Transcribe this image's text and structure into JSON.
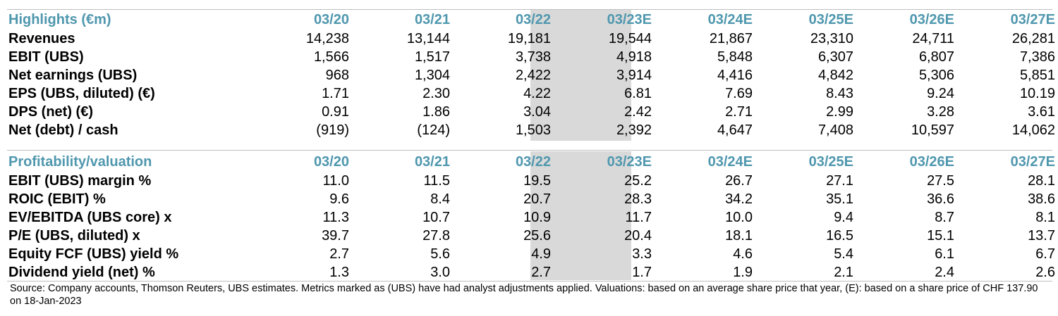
{
  "highlights": {
    "title": "Highlights (€m)",
    "columns": [
      "03/20",
      "03/21",
      "03/22",
      "03/23E",
      "03/24E",
      "03/25E",
      "03/26E",
      "03/27E"
    ],
    "rows": [
      {
        "label": "Revenues",
        "values": [
          "14,238",
          "13,144",
          "19,181",
          "19,544",
          "21,867",
          "23,310",
          "24,711",
          "26,281"
        ]
      },
      {
        "label": "EBIT (UBS)",
        "values": [
          "1,566",
          "1,517",
          "3,738",
          "4,918",
          "5,848",
          "6,307",
          "6,807",
          "7,386"
        ]
      },
      {
        "label": "Net earnings (UBS)",
        "values": [
          "968",
          "1,304",
          "2,422",
          "3,914",
          "4,416",
          "4,842",
          "5,306",
          "5,851"
        ]
      },
      {
        "label": "EPS (UBS, diluted) (€)",
        "values": [
          "1.71",
          "2.30",
          "4.22",
          "6.81",
          "7.69",
          "8.43",
          "9.24",
          "10.19"
        ]
      },
      {
        "label": "DPS (net) (€)",
        "values": [
          "0.91",
          "1.86",
          "3.04",
          "2.42",
          "2.71",
          "2.99",
          "3.28",
          "3.61"
        ]
      },
      {
        "label": "Net (debt) / cash",
        "values": [
          "(919)",
          "(124)",
          "1,503",
          "2,392",
          "4,647",
          "7,408",
          "10,597",
          "14,062"
        ]
      }
    ]
  },
  "profitability": {
    "title": "Profitability/valuation",
    "columns": [
      "03/20",
      "03/21",
      "03/22",
      "03/23E",
      "03/24E",
      "03/25E",
      "03/26E",
      "03/27E"
    ],
    "rows": [
      {
        "label": "EBIT (UBS) margin %",
        "values": [
          "11.0",
          "11.5",
          "19.5",
          "25.2",
          "26.7",
          "27.1",
          "27.5",
          "28.1"
        ]
      },
      {
        "label": "ROIC (EBIT) %",
        "values": [
          "9.6",
          "8.4",
          "20.7",
          "28.3",
          "34.2",
          "35.1",
          "36.6",
          "38.6"
        ]
      },
      {
        "label": "EV/EBITDA (UBS core) x",
        "values": [
          "11.3",
          "10.7",
          "10.9",
          "11.7",
          "10.0",
          "9.4",
          "8.7",
          "8.1"
        ]
      },
      {
        "label": "P/E (UBS, diluted) x",
        "values": [
          "39.7",
          "27.8",
          "25.6",
          "20.4",
          "18.1",
          "16.5",
          "15.1",
          "13.7"
        ]
      },
      {
        "label": "Equity FCF (UBS) yield %",
        "values": [
          "2.7",
          "5.6",
          "4.9",
          "3.3",
          "4.6",
          "5.4",
          "6.1",
          "6.7"
        ]
      },
      {
        "label": "Dividend yield (net) %",
        "values": [
          "1.3",
          "3.0",
          "2.7",
          "1.7",
          "1.9",
          "2.1",
          "2.4",
          "2.6"
        ]
      }
    ]
  },
  "highlight_color": "#d9d9d9",
  "header_color": "#4f97ae",
  "footnote": "Source: Company accounts, Thomson Reuters, UBS estimates. Metrics marked as (UBS) have had analyst adjustments applied. Valuations: based on an average share price that year, (E): based on a share price of CHF 137.90 on 18-Jan-2023"
}
